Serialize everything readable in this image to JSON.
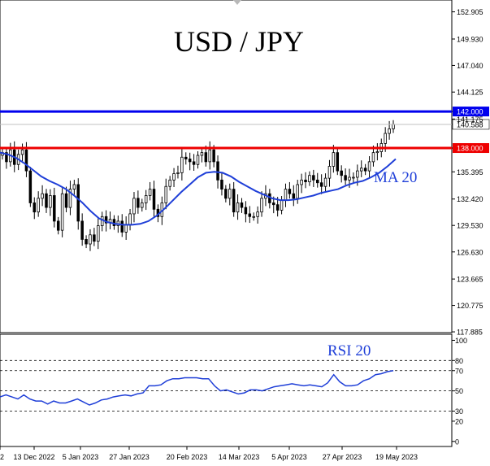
{
  "chart_data": [
    {
      "type": "candlestick",
      "title": "USD / JPY",
      "y_ticks": [
        117.885,
        120.775,
        123.665,
        126.63,
        129.53,
        132.42,
        135.395,
        138.0,
        140.588,
        141.175,
        142.0,
        144.125,
        147.04,
        149.93,
        152.905
      ],
      "y_tick_labels": [
        "117.885",
        "120.775",
        "123.665",
        "126.630",
        "129.530",
        "132.420",
        "135.395",
        "138.000",
        "140.588",
        "141.175",
        "142.000",
        "144.125",
        "147.040",
        "149.930",
        "152.905"
      ],
      "ylim": [
        117.8,
        154.2
      ],
      "x_tick_labels": [
        "2",
        "13 Dec 2022",
        "5 Jan 2023",
        "27 Jan 2023",
        "20 Feb 2023",
        "14 Mar 2023",
        "5 Apr 2023",
        "27 Apr 2023",
        "19 May 2023"
      ],
      "horizontal_lines": [
        {
          "value": 142.0,
          "label": "142.000",
          "color": "#0000ee"
        },
        {
          "value": 138.0,
          "label": "138.000",
          "color": "#ee0000"
        }
      ],
      "current_price": {
        "value": 140.588,
        "label": "140.588"
      },
      "close": [
        137.5,
        136.5,
        137.8,
        136.2,
        137.3,
        137.8,
        135.5,
        132.0,
        131.0,
        132.5,
        133.0,
        131.5,
        132.8,
        130.0,
        129.0,
        133.0,
        131.5,
        133.5,
        134.0,
        130.0,
        128.0,
        127.5,
        128.5,
        127.8,
        129.5,
        130.5,
        129.8,
        130.2,
        129.5,
        130.0,
        128.8,
        129.6,
        130.8,
        132.5,
        131.5,
        132.0,
        132.8,
        133.5,
        131.3,
        130.5,
        132.0,
        133.8,
        134.5,
        135.2,
        135.3,
        137.0,
        136.8,
        136.5,
        136.2,
        137.2,
        137.5,
        136.5,
        137.8,
        136.5,
        134.5,
        133.5,
        132.5,
        133.5,
        131.0,
        132.0,
        131.5,
        130.8,
        130.5,
        130.5,
        131.0,
        132.5,
        133.0,
        132.0,
        131.8,
        131.2,
        132.3,
        133.5,
        133.0,
        132.5,
        134.0,
        134.5,
        134.3,
        135.0,
        134.5,
        134.2,
        133.8,
        134.7,
        136.0,
        137.5,
        135.5,
        135.0,
        134.5,
        134.8,
        134.8,
        135.5,
        135.8,
        135.5,
        136.5,
        137.5,
        137.6,
        138.5,
        139.6,
        140.1,
        140.6
      ],
      "ma_label": "MA 20",
      "ma_values": [
        137.5,
        137.3,
        136.9,
        136.3,
        135.6,
        134.9,
        134.4,
        134.0,
        133.5,
        132.8,
        132.0,
        131.1,
        130.3,
        129.9,
        129.7,
        129.6,
        129.6,
        129.7,
        130.0,
        130.6,
        131.4,
        132.3,
        133.2,
        134.0,
        134.8,
        135.3,
        135.4,
        135.3,
        134.9,
        134.3,
        133.8,
        133.3,
        132.9,
        132.5,
        132.3,
        132.3,
        132.4,
        132.6,
        132.8,
        133.1,
        133.3,
        133.5,
        133.9,
        134.2,
        134.4,
        134.8,
        135.3,
        136.0,
        136.8
      ]
    },
    {
      "type": "line",
      "series_label": "RSI 20",
      "y_ticks": [
        0,
        20,
        30,
        50,
        70,
        80,
        100
      ],
      "ylim": [
        -5,
        106
      ],
      "dashed_levels": [
        30,
        50,
        70,
        80
      ],
      "values": [
        44,
        46,
        44,
        42,
        46,
        42,
        40,
        40,
        37,
        40,
        38,
        38,
        40,
        42,
        39,
        36,
        38,
        41,
        42,
        44,
        45,
        46,
        45,
        47,
        48,
        55,
        55,
        56,
        60,
        62,
        62,
        63,
        63,
        63,
        62,
        62,
        55,
        50,
        51,
        49,
        47,
        48,
        51,
        51,
        50,
        52,
        54,
        55,
        56,
        57,
        56,
        55,
        56,
        55,
        54,
        58,
        66,
        59,
        55,
        55,
        56,
        60,
        62,
        66,
        67,
        69,
        70
      ]
    }
  ]
}
